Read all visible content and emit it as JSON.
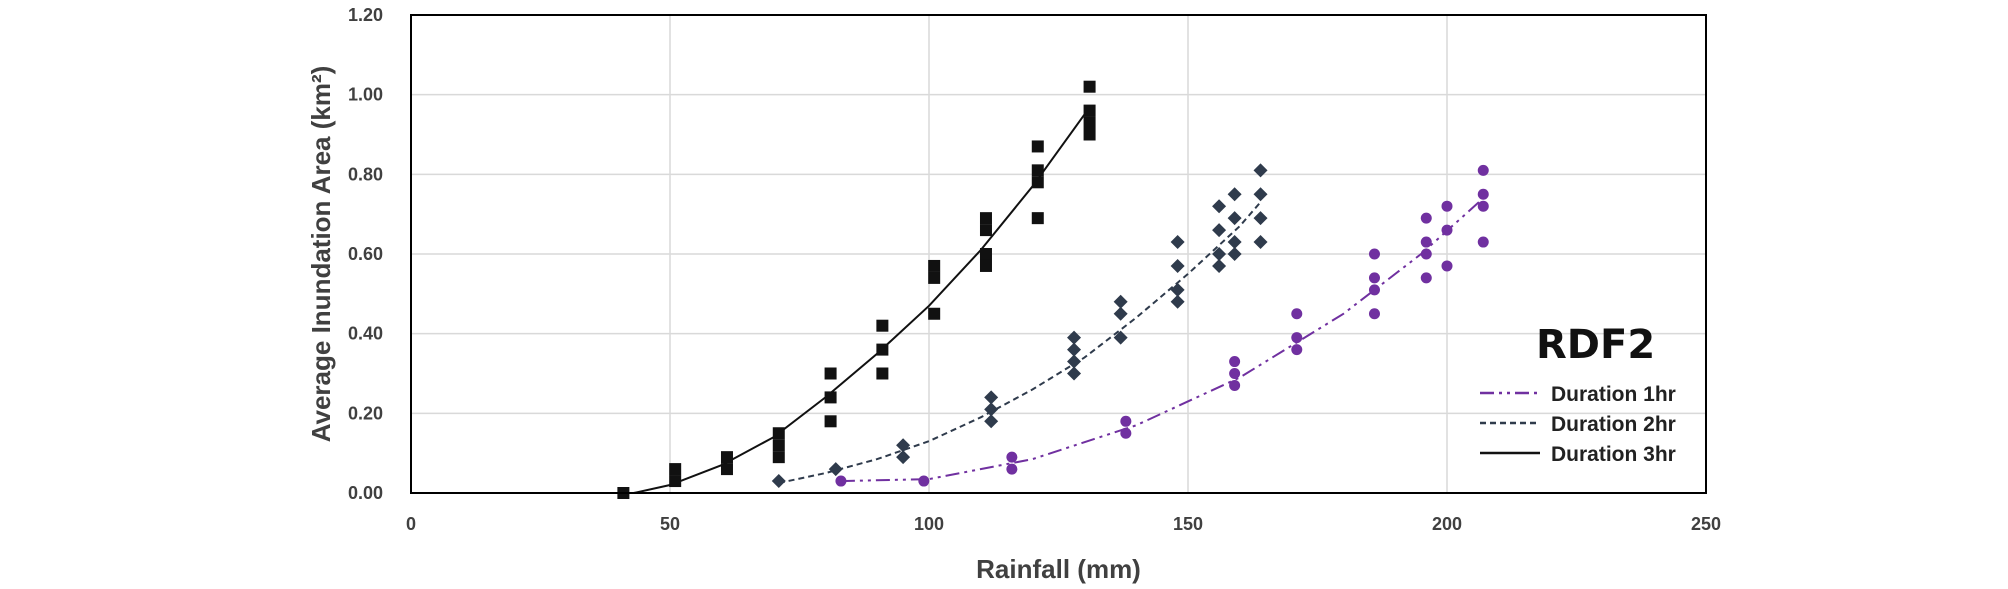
{
  "chart_data": {
    "type": "scatter",
    "title": "",
    "xlabel": "Rainfall (mm)",
    "ylabel": "Average Inundation Area (km²)",
    "xlim": [
      0,
      250
    ],
    "ylim": [
      0,
      1.2
    ],
    "x_ticks": [
      "0",
      "50",
      "100",
      "150",
      "200",
      "250"
    ],
    "y_ticks": [
      "0.00",
      "0.20",
      "0.40",
      "0.60",
      "0.80",
      "1.00",
      "1.20"
    ],
    "grid": true,
    "legend_position": "right",
    "legend_title": "RDF2",
    "series": [
      {
        "name": "Duration 1hr",
        "marker": "circle",
        "color": "#7030A0",
        "line_style": "dash-dot-dot",
        "points": [
          [
            83,
            0.03
          ],
          [
            99,
            0.03
          ],
          [
            116,
            0.09
          ],
          [
            116,
            0.06
          ],
          [
            138,
            0.18
          ],
          [
            138,
            0.15
          ],
          [
            159,
            0.33
          ],
          [
            159,
            0.3
          ],
          [
            159,
            0.27
          ],
          [
            171,
            0.45
          ],
          [
            171,
            0.39
          ],
          [
            171,
            0.36
          ],
          [
            186,
            0.6
          ],
          [
            186,
            0.54
          ],
          [
            186,
            0.51
          ],
          [
            186,
            0.45
          ],
          [
            196,
            0.69
          ],
          [
            196,
            0.63
          ],
          [
            196,
            0.6
          ],
          [
            196,
            0.54
          ],
          [
            200,
            0.72
          ],
          [
            200,
            0.66
          ],
          [
            200,
            0.57
          ],
          [
            207,
            0.81
          ],
          [
            207,
            0.75
          ],
          [
            207,
            0.72
          ],
          [
            207,
            0.63
          ]
        ],
        "trend": [
          [
            83,
            0.03
          ],
          [
            100,
            0.035
          ],
          [
            120,
            0.085
          ],
          [
            140,
            0.17
          ],
          [
            160,
            0.29
          ],
          [
            180,
            0.45
          ],
          [
            195,
            0.6
          ],
          [
            207,
            0.74
          ]
        ]
      },
      {
        "name": "Duration 2hr",
        "marker": "diamond",
        "color": "#2F3B4C",
        "line_style": "dashed",
        "points": [
          [
            71,
            0.03
          ],
          [
            82,
            0.06
          ],
          [
            95,
            0.12
          ],
          [
            95,
            0.09
          ],
          [
            112,
            0.24
          ],
          [
            112,
            0.21
          ],
          [
            112,
            0.18
          ],
          [
            128,
            0.39
          ],
          [
            128,
            0.36
          ],
          [
            128,
            0.33
          ],
          [
            128,
            0.3
          ],
          [
            137,
            0.48
          ],
          [
            137,
            0.45
          ],
          [
            137,
            0.39
          ],
          [
            148,
            0.63
          ],
          [
            148,
            0.57
          ],
          [
            148,
            0.51
          ],
          [
            148,
            0.48
          ],
          [
            156,
            0.72
          ],
          [
            156,
            0.66
          ],
          [
            156,
            0.6
          ],
          [
            156,
            0.57
          ],
          [
            159,
            0.75
          ],
          [
            159,
            0.69
          ],
          [
            159,
            0.63
          ],
          [
            159,
            0.6
          ],
          [
            164,
            0.81
          ],
          [
            164,
            0.75
          ],
          [
            164,
            0.69
          ],
          [
            164,
            0.63
          ]
        ],
        "trend": [
          [
            71,
            0.025
          ],
          [
            80,
            0.05
          ],
          [
            90,
            0.085
          ],
          [
            100,
            0.13
          ],
          [
            110,
            0.19
          ],
          [
            120,
            0.26
          ],
          [
            130,
            0.34
          ],
          [
            140,
            0.44
          ],
          [
            150,
            0.55
          ],
          [
            160,
            0.67
          ],
          [
            164,
            0.73
          ]
        ]
      },
      {
        "name": "Duration 3hr",
        "marker": "square",
        "color": "#111111",
        "line_style": "solid",
        "points": [
          [
            41,
            0.0
          ],
          [
            51,
            0.06
          ],
          [
            51,
            0.03
          ],
          [
            61,
            0.09
          ],
          [
            61,
            0.06
          ],
          [
            71,
            0.15
          ],
          [
            71,
            0.12
          ],
          [
            71,
            0.09
          ],
          [
            81,
            0.3
          ],
          [
            81,
            0.24
          ],
          [
            81,
            0.18
          ],
          [
            91,
            0.42
          ],
          [
            91,
            0.36
          ],
          [
            91,
            0.3
          ],
          [
            101,
            0.57
          ],
          [
            101,
            0.54
          ],
          [
            101,
            0.45
          ],
          [
            111,
            0.69
          ],
          [
            111,
            0.66
          ],
          [
            111,
            0.6
          ],
          [
            111,
            0.57
          ],
          [
            121,
            0.87
          ],
          [
            121,
            0.81
          ],
          [
            121,
            0.78
          ],
          [
            121,
            0.69
          ],
          [
            131,
            1.02
          ],
          [
            131,
            0.96
          ],
          [
            131,
            0.93
          ],
          [
            131,
            0.9
          ]
        ],
        "trend": [
          [
            43,
            0.0
          ],
          [
            50,
            0.02
          ],
          [
            60,
            0.07
          ],
          [
            70,
            0.14
          ],
          [
            80,
            0.24
          ],
          [
            90,
            0.35
          ],
          [
            100,
            0.47
          ],
          [
            110,
            0.61
          ],
          [
            120,
            0.77
          ],
          [
            130,
            0.95
          ]
        ]
      }
    ]
  }
}
